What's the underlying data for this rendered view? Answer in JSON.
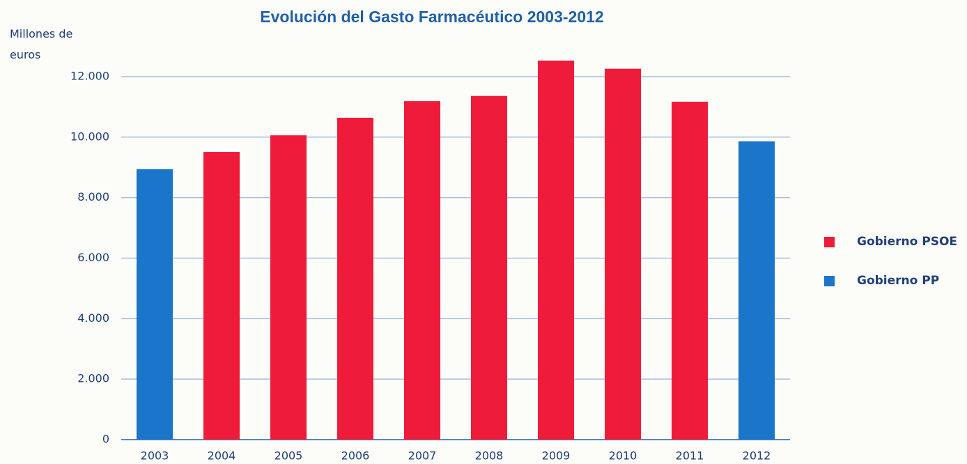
{
  "chart_data": {
    "type": "bar",
    "title": "Evolución del Gasto Farmacéutico 2003-2012",
    "y_label": "Millones de euros",
    "categories": [
      "2003",
      "2004",
      "2005",
      "2006",
      "2007",
      "2008",
      "2009",
      "2010",
      "2011",
      "2012"
    ],
    "series": [
      {
        "name": "Gobierno PSOE",
        "color": "#ee1c3a",
        "values": [
          null,
          9510,
          10060,
          10640,
          11190,
          11360,
          12530,
          12260,
          11170,
          null
        ]
      },
      {
        "name": "Gobierno PP",
        "color": "#1b75c9",
        "values": [
          8940,
          null,
          null,
          null,
          null,
          null,
          null,
          null,
          null,
          9860
        ]
      }
    ],
    "ylim": [
      0,
      13000
    ],
    "yticks": [
      0,
      {
        "value": 2000,
        "label": "2.000"
      },
      {
        "value": 4000,
        "label": "4.000"
      },
      {
        "value": 6000,
        "label": "6.000"
      },
      {
        "value": 8000,
        "label": "8.000"
      },
      {
        "value": 10000,
        "label": "10.000"
      },
      {
        "value": 12000,
        "label": "12.000"
      }
    ],
    "grid": true,
    "legend": "right"
  }
}
